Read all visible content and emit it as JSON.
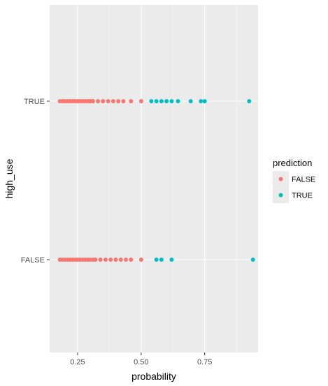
{
  "chart_data": {
    "type": "scatter",
    "xlabel": "probability",
    "ylabel": "high_use",
    "xlim": [
      0.14,
      0.96
    ],
    "x_ticks": [
      0.25,
      0.5,
      0.75
    ],
    "x_tick_labels": [
      "0.25",
      "0.50",
      "0.75"
    ],
    "categories": [
      "FALSE",
      "TRUE"
    ],
    "grid": true,
    "legend": {
      "title": "prediction",
      "placement": "right",
      "entries": [
        {
          "label": "FALSE",
          "color": "#F8766D"
        },
        {
          "label": "TRUE",
          "color": "#00BFC4"
        }
      ]
    },
    "series": [
      {
        "name": "FALSE",
        "color": "#F8766D",
        "points": [
          {
            "x": 0.18,
            "y": "TRUE"
          },
          {
            "x": 0.19,
            "y": "TRUE"
          },
          {
            "x": 0.2,
            "y": "TRUE"
          },
          {
            "x": 0.21,
            "y": "TRUE"
          },
          {
            "x": 0.22,
            "y": "TRUE"
          },
          {
            "x": 0.23,
            "y": "TRUE"
          },
          {
            "x": 0.24,
            "y": "TRUE"
          },
          {
            "x": 0.25,
            "y": "TRUE"
          },
          {
            "x": 0.26,
            "y": "TRUE"
          },
          {
            "x": 0.27,
            "y": "TRUE"
          },
          {
            "x": 0.28,
            "y": "TRUE"
          },
          {
            "x": 0.29,
            "y": "TRUE"
          },
          {
            "x": 0.3,
            "y": "TRUE"
          },
          {
            "x": 0.31,
            "y": "TRUE"
          },
          {
            "x": 0.33,
            "y": "TRUE"
          },
          {
            "x": 0.35,
            "y": "TRUE"
          },
          {
            "x": 0.37,
            "y": "TRUE"
          },
          {
            "x": 0.39,
            "y": "TRUE"
          },
          {
            "x": 0.41,
            "y": "TRUE"
          },
          {
            "x": 0.43,
            "y": "TRUE"
          },
          {
            "x": 0.46,
            "y": "TRUE"
          },
          {
            "x": 0.5,
            "y": "TRUE"
          },
          {
            "x": 0.18,
            "y": "FALSE"
          },
          {
            "x": 0.19,
            "y": "FALSE"
          },
          {
            "x": 0.2,
            "y": "FALSE"
          },
          {
            "x": 0.21,
            "y": "FALSE"
          },
          {
            "x": 0.22,
            "y": "FALSE"
          },
          {
            "x": 0.23,
            "y": "FALSE"
          },
          {
            "x": 0.24,
            "y": "FALSE"
          },
          {
            "x": 0.25,
            "y": "FALSE"
          },
          {
            "x": 0.26,
            "y": "FALSE"
          },
          {
            "x": 0.27,
            "y": "FALSE"
          },
          {
            "x": 0.28,
            "y": "FALSE"
          },
          {
            "x": 0.29,
            "y": "FALSE"
          },
          {
            "x": 0.3,
            "y": "FALSE"
          },
          {
            "x": 0.31,
            "y": "FALSE"
          },
          {
            "x": 0.32,
            "y": "FALSE"
          },
          {
            "x": 0.34,
            "y": "FALSE"
          },
          {
            "x": 0.36,
            "y": "FALSE"
          },
          {
            "x": 0.38,
            "y": "FALSE"
          },
          {
            "x": 0.4,
            "y": "FALSE"
          },
          {
            "x": 0.42,
            "y": "FALSE"
          },
          {
            "x": 0.44,
            "y": "FALSE"
          },
          {
            "x": 0.46,
            "y": "FALSE"
          },
          {
            "x": 0.5,
            "y": "FALSE"
          }
        ]
      },
      {
        "name": "TRUE",
        "color": "#00BFC4",
        "points": [
          {
            "x": 0.54,
            "y": "TRUE"
          },
          {
            "x": 0.56,
            "y": "TRUE"
          },
          {
            "x": 0.58,
            "y": "TRUE"
          },
          {
            "x": 0.6,
            "y": "TRUE"
          },
          {
            "x": 0.62,
            "y": "TRUE"
          },
          {
            "x": 0.645,
            "y": "TRUE"
          },
          {
            "x": 0.695,
            "y": "TRUE"
          },
          {
            "x": 0.735,
            "y": "TRUE"
          },
          {
            "x": 0.75,
            "y": "TRUE"
          },
          {
            "x": 0.925,
            "y": "TRUE"
          },
          {
            "x": 0.56,
            "y": "FALSE"
          },
          {
            "x": 0.58,
            "y": "FALSE"
          },
          {
            "x": 0.62,
            "y": "FALSE"
          },
          {
            "x": 0.94,
            "y": "FALSE"
          }
        ]
      }
    ]
  }
}
